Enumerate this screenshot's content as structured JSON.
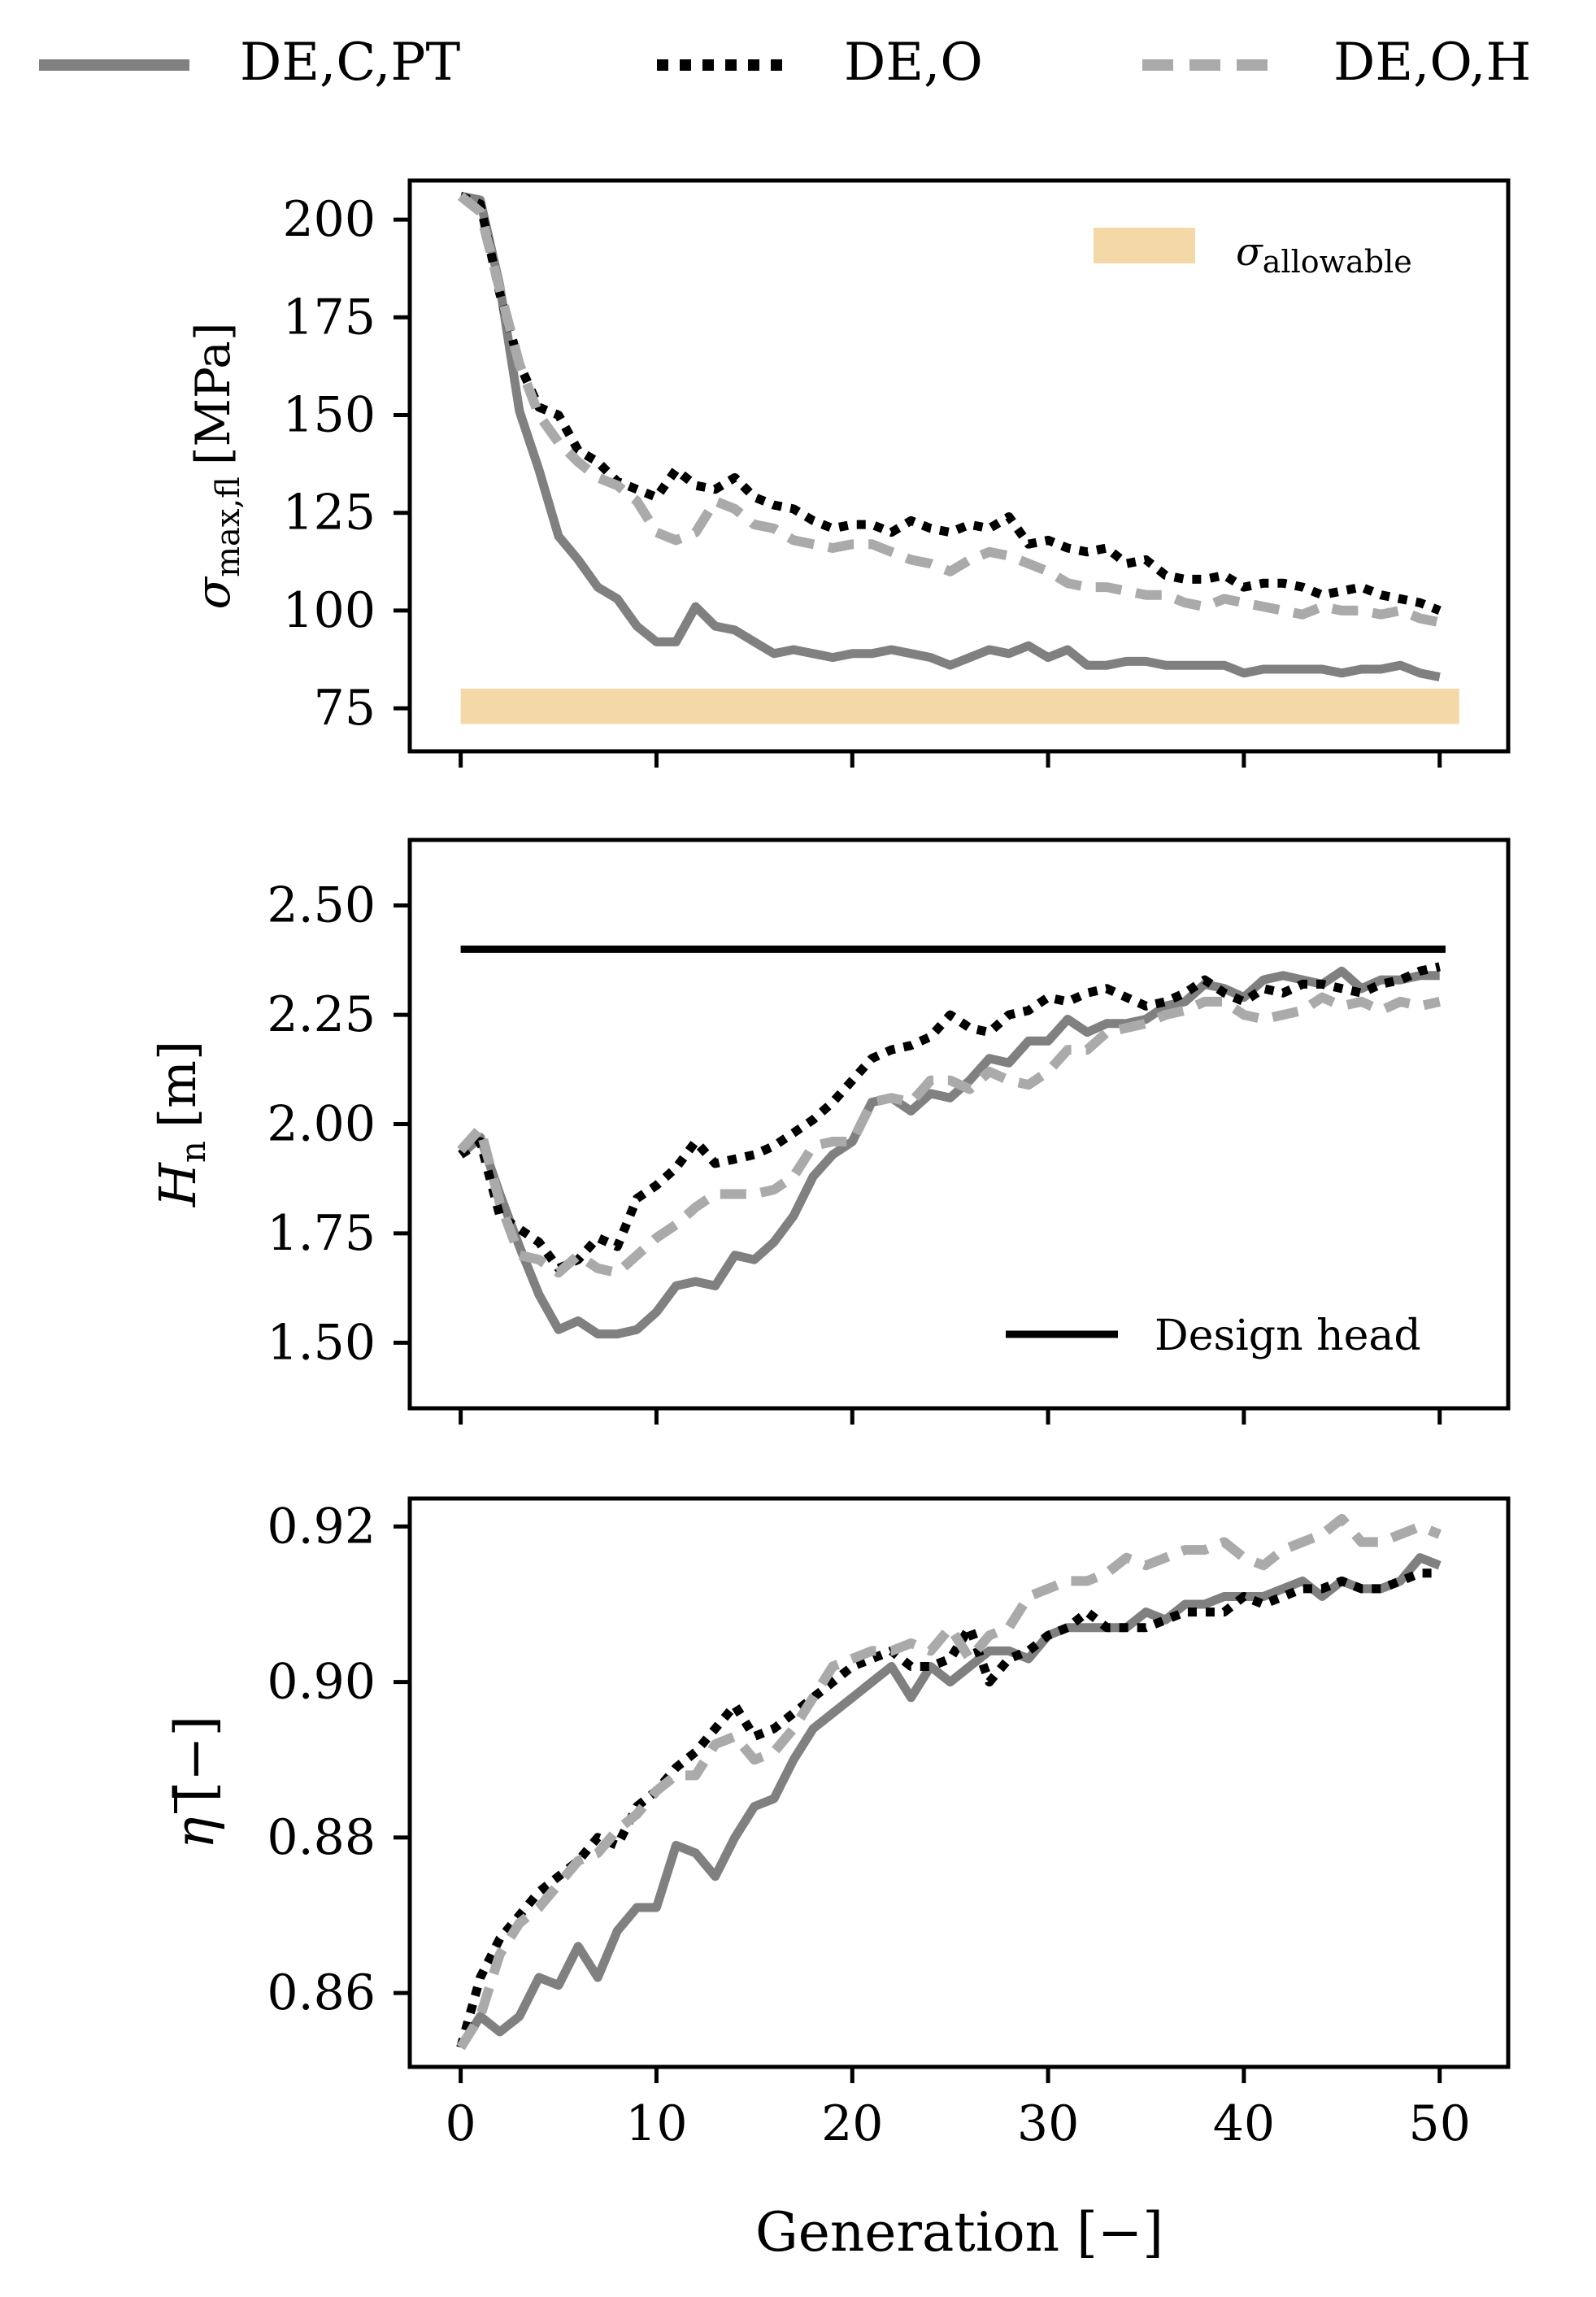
{
  "legend": {
    "entries": [
      {
        "label": "DE,C,PT",
        "style": "solid",
        "color": "#808080"
      },
      {
        "label": "DE,O",
        "style": "dotted",
        "color": "#000000"
      },
      {
        "label": "DE,O,H",
        "style": "dashed",
        "color": "#aaaaaa"
      }
    ]
  },
  "xaxis": {
    "label": "Generation [−]",
    "ticks": [
      "0",
      "10",
      "20",
      "30",
      "40",
      "50"
    ]
  },
  "chart_data": [
    {
      "type": "line",
      "ylabel": "σmax,fl [MPa]",
      "ylabel_main": "σ",
      "ylabel_sub": "max,fl",
      "ylabel_unit": "[MPa]",
      "xlim": [
        -2.6,
        53.5
      ],
      "ylim": [
        64,
        210
      ],
      "yticks": [
        75,
        100,
        125,
        150,
        175,
        200
      ],
      "ytick_labels": [
        "75",
        "100",
        "125",
        "150",
        "175",
        "200"
      ],
      "band": {
        "label_main": "σ",
        "label_sub": "allowable",
        "ymin": 71,
        "ymax": 80,
        "xmin": 0,
        "xmax": 51,
        "color": "#f5d8a8"
      },
      "series": [
        {
          "name": "DE,C,PT",
          "values": [
            206,
            205,
            183,
            151,
            136,
            119,
            113,
            106,
            103,
            96,
            92,
            92,
            101,
            96,
            95,
            92,
            89,
            90,
            89,
            88,
            89,
            89,
            90,
            89,
            88,
            86,
            88,
            90,
            89,
            91,
            88,
            90,
            86,
            86,
            87,
            87,
            86,
            86,
            86,
            86,
            84,
            85,
            85,
            85,
            85,
            84,
            85,
            85,
            86,
            84,
            83
          ]
        },
        {
          "name": "DE,O",
          "values": [
            206,
            204,
            181,
            163,
            152,
            150,
            141,
            138,
            133,
            131,
            129,
            136,
            132,
            131,
            134,
            129,
            127,
            126,
            123,
            121,
            122,
            122,
            120,
            123,
            121,
            120,
            122,
            121,
            124,
            117,
            118,
            116,
            115,
            116,
            112,
            113,
            109,
            108,
            108,
            109,
            106,
            107,
            107,
            106,
            104,
            105,
            106,
            104,
            103,
            102,
            100
          ]
        },
        {
          "name": "DE,O,H",
          "values": [
            206,
            202,
            182,
            163,
            150,
            143,
            138,
            134,
            132,
            128,
            120,
            118,
            120,
            128,
            126,
            122,
            121,
            118,
            117,
            116,
            117,
            117,
            115,
            113,
            112,
            110,
            113,
            115,
            114,
            112,
            110,
            107,
            106,
            106,
            105,
            104,
            104,
            102,
            101,
            103,
            102,
            101,
            100,
            99,
            101,
            100,
            100,
            99,
            100,
            98,
            97
          ]
        }
      ]
    },
    {
      "type": "line",
      "ylabel": "Hn [m]",
      "ylabel_main": "H",
      "ylabel_sub": "n",
      "ylabel_unit": "[m]",
      "xlim": [
        -2.6,
        53.5
      ],
      "ylim": [
        1.35,
        2.65
      ],
      "yticks": [
        1.5,
        1.75,
        2.0,
        2.25,
        2.5
      ],
      "ytick_labels": [
        "1.50",
        "1.75",
        "2.00",
        "2.25",
        "2.50"
      ],
      "reference_line": {
        "label": "Design head",
        "y": 2.4,
        "xmin": 0,
        "xmax": 50.3
      },
      "series": [
        {
          "name": "DE,C,PT",
          "values": [
            1.93,
            1.97,
            1.84,
            1.72,
            1.61,
            1.53,
            1.55,
            1.52,
            1.52,
            1.53,
            1.57,
            1.63,
            1.64,
            1.63,
            1.7,
            1.69,
            1.73,
            1.79,
            1.88,
            1.93,
            1.96,
            2.05,
            2.06,
            2.03,
            2.07,
            2.06,
            2.1,
            2.15,
            2.14,
            2.19,
            2.19,
            2.24,
            2.21,
            2.23,
            2.23,
            2.24,
            2.27,
            2.28,
            2.32,
            2.31,
            2.29,
            2.33,
            2.34,
            2.33,
            2.32,
            2.35,
            2.31,
            2.33,
            2.33,
            2.34,
            2.34
          ]
        },
        {
          "name": "DE,O",
          "values": [
            1.93,
            1.96,
            1.79,
            1.76,
            1.73,
            1.67,
            1.69,
            1.74,
            1.72,
            1.83,
            1.86,
            1.9,
            1.96,
            1.91,
            1.92,
            1.93,
            1.95,
            1.98,
            2.01,
            2.05,
            2.1,
            2.15,
            2.17,
            2.18,
            2.2,
            2.25,
            2.22,
            2.21,
            2.25,
            2.26,
            2.29,
            2.28,
            2.3,
            2.31,
            2.29,
            2.27,
            2.28,
            2.3,
            2.33,
            2.3,
            2.28,
            2.31,
            2.3,
            2.32,
            2.32,
            2.31,
            2.3,
            2.32,
            2.33,
            2.35,
            2.36
          ]
        },
        {
          "name": "DE,O,H",
          "values": [
            1.94,
            1.99,
            1.82,
            1.7,
            1.69,
            1.66,
            1.7,
            1.67,
            1.66,
            1.7,
            1.74,
            1.77,
            1.81,
            1.84,
            1.84,
            1.84,
            1.85,
            1.88,
            1.95,
            1.96,
            1.96,
            2.05,
            2.06,
            2.05,
            2.1,
            2.1,
            2.08,
            2.12,
            2.1,
            2.09,
            2.12,
            2.17,
            2.17,
            2.21,
            2.22,
            2.23,
            2.25,
            2.26,
            2.28,
            2.28,
            2.25,
            2.24,
            2.25,
            2.26,
            2.29,
            2.27,
            2.28,
            2.26,
            2.28,
            2.27,
            2.28
          ]
        }
      ]
    },
    {
      "type": "line",
      "ylabel": "η̅ [−]",
      "ylabel_main": "η",
      "ylabel_sub": "",
      "ylabel_unit": "[−]",
      "xlim": [
        -2.6,
        53.5
      ],
      "ylim": [
        0.8505,
        0.9236
      ],
      "yticks": [
        0.86,
        0.88,
        0.9,
        0.92
      ],
      "ytick_labels": [
        "0.86",
        "0.88",
        "0.90",
        "0.92"
      ],
      "series": [
        {
          "name": "DE,C,PT",
          "values": [
            0.853,
            0.857,
            0.855,
            0.857,
            0.862,
            0.861,
            0.866,
            0.862,
            0.868,
            0.871,
            0.871,
            0.879,
            0.878,
            0.875,
            0.88,
            0.884,
            0.885,
            0.89,
            0.894,
            0.896,
            0.898,
            0.9,
            0.902,
            0.898,
            0.902,
            0.9,
            0.902,
            0.904,
            0.904,
            0.903,
            0.906,
            0.907,
            0.907,
            0.907,
            0.907,
            0.909,
            0.908,
            0.91,
            0.91,
            0.911,
            0.911,
            0.911,
            0.912,
            0.913,
            0.911,
            0.913,
            0.912,
            0.912,
            0.913,
            0.916,
            0.915
          ]
        },
        {
          "name": "DE,O",
          "values": [
            0.853,
            0.862,
            0.867,
            0.87,
            0.873,
            0.875,
            0.877,
            0.88,
            0.879,
            0.884,
            0.886,
            0.889,
            0.891,
            0.894,
            0.897,
            0.893,
            0.894,
            0.896,
            0.898,
            0.9,
            0.902,
            0.903,
            0.904,
            0.902,
            0.902,
            0.903,
            0.907,
            0.9,
            0.903,
            0.904,
            0.906,
            0.907,
            0.909,
            0.907,
            0.907,
            0.907,
            0.908,
            0.909,
            0.909,
            0.909,
            0.911,
            0.91,
            0.911,
            0.912,
            0.912,
            0.913,
            0.912,
            0.912,
            0.913,
            0.914,
            0.914
          ]
        },
        {
          "name": "DE,O,H",
          "values": [
            0.853,
            0.857,
            0.865,
            0.869,
            0.871,
            0.874,
            0.877,
            0.878,
            0.881,
            0.883,
            0.886,
            0.888,
            0.888,
            0.892,
            0.893,
            0.89,
            0.891,
            0.894,
            0.898,
            0.902,
            0.903,
            0.904,
            0.904,
            0.905,
            0.904,
            0.907,
            0.903,
            0.906,
            0.907,
            0.911,
            0.912,
            0.913,
            0.913,
            0.914,
            0.916,
            0.915,
            0.916,
            0.917,
            0.917,
            0.918,
            0.916,
            0.915,
            0.917,
            0.918,
            0.919,
            0.921,
            0.918,
            0.918,
            0.919,
            0.92,
            0.919
          ]
        }
      ]
    }
  ]
}
